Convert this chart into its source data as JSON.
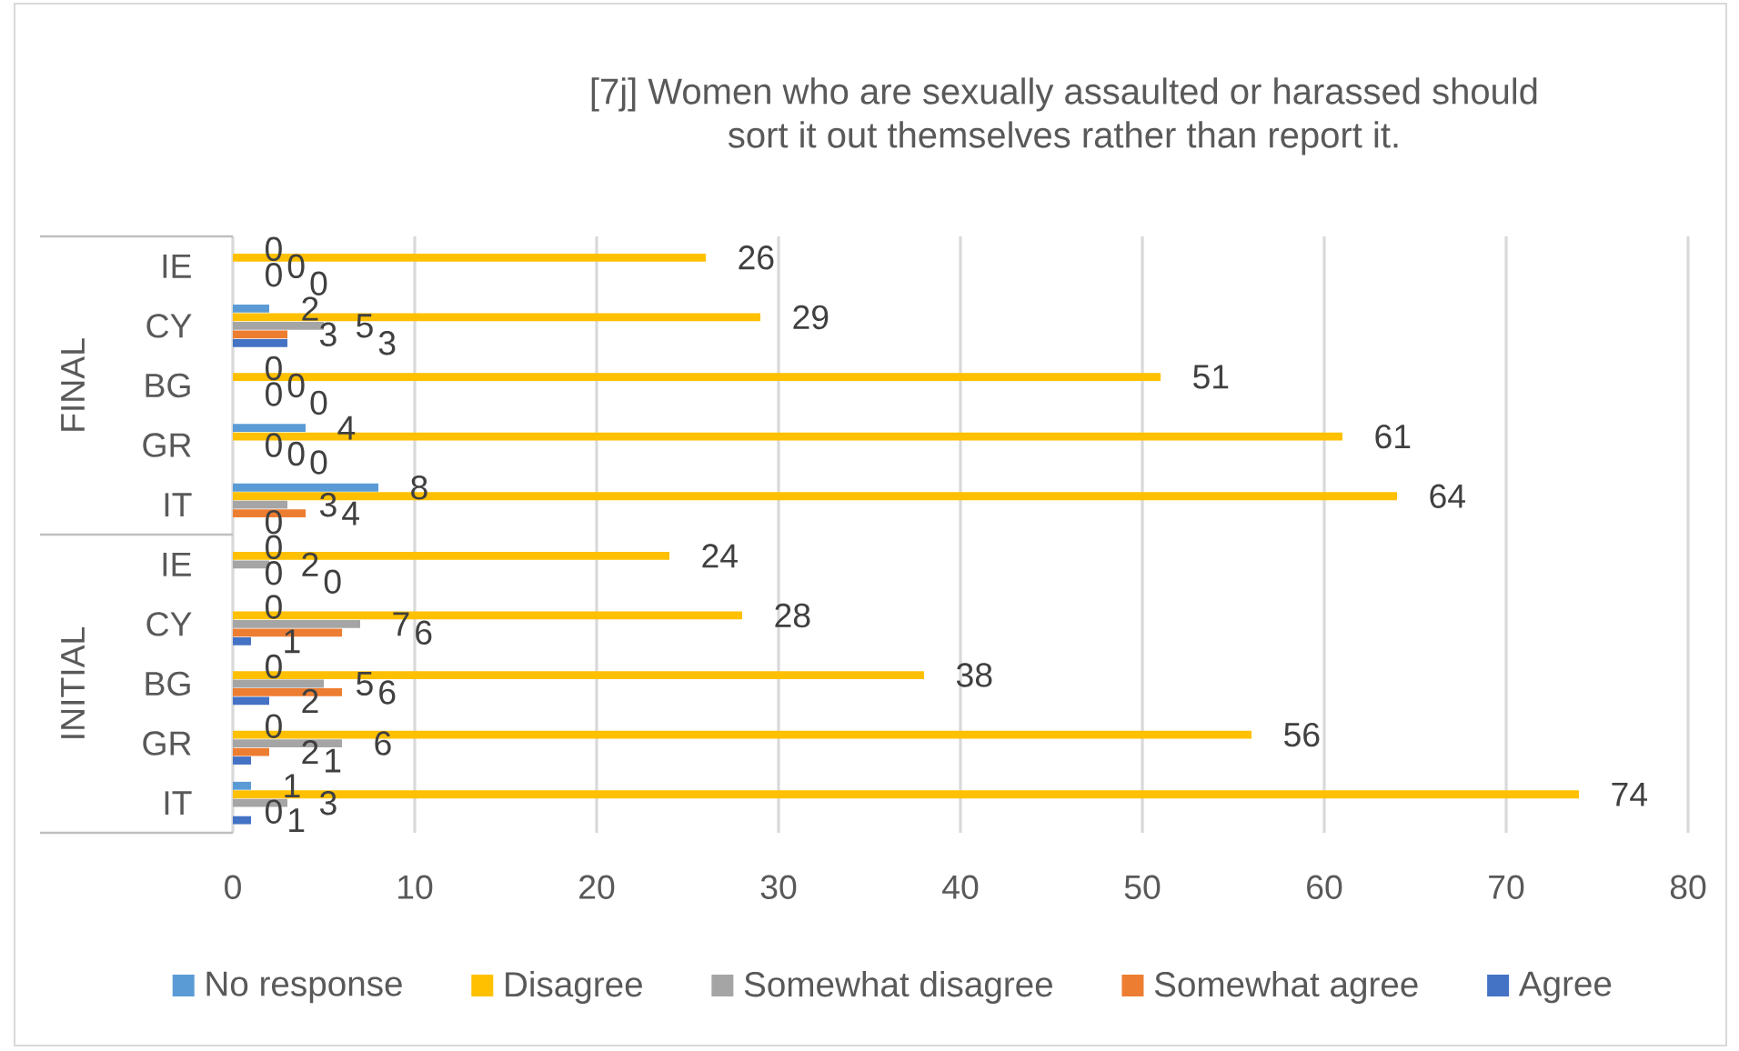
{
  "chart_data": {
    "type": "bar",
    "orientation": "horizontal",
    "title": "[7j] Women who are sexually assaulted or harassed should sort it out themselves rather than report it.",
    "categories": [
      "IE",
      "CY",
      "BG",
      "GR",
      "IT",
      "IE",
      "CY",
      "BG",
      "GR",
      "IT"
    ],
    "annotations": [
      "FINAL",
      "INITIAL"
    ],
    "series": [
      {
        "name": "No response",
        "color": "#5B9BD5",
        "values": [
          0,
          2,
          0,
          4,
          8,
          0,
          0,
          0,
          0,
          1
        ]
      },
      {
        "name": "Disagree",
        "color": "#FFC000",
        "values": [
          26,
          29,
          51,
          61,
          64,
          24,
          28,
          38,
          56,
          74
        ]
      },
      {
        "name": "Somewhat disagree",
        "color": "#A5A5A5",
        "values": [
          0,
          5,
          0,
          0,
          3,
          2,
          7,
          5,
          6,
          3
        ]
      },
      {
        "name": "Somewhat agree",
        "color": "#ED7D31",
        "values": [
          0,
          3,
          0,
          0,
          4,
          0,
          6,
          6,
          2,
          0
        ]
      },
      {
        "name": "Agree",
        "color": "#4472C4",
        "values": [
          0,
          3,
          0,
          0,
          0,
          0,
          1,
          2,
          1,
          1
        ]
      }
    ],
    "xlim": [
      0,
      80
    ],
    "xticks": [
      0,
      10,
      20,
      30,
      40,
      50,
      60,
      70,
      80
    ],
    "grid": "x",
    "legend": "bottom",
    "data_labels": true
  }
}
